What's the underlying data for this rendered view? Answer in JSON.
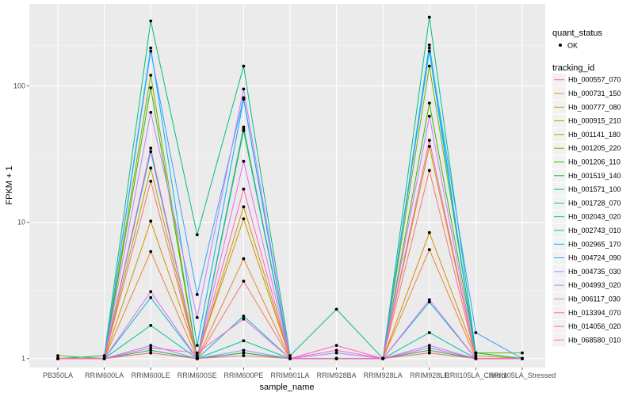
{
  "chart_data": {
    "type": "line",
    "xlabel": "sample_name",
    "ylabel": "FPKM + 1",
    "y_scale": "log10",
    "ylim": [
      0.86,
      400
    ],
    "yticks": [
      1,
      10,
      100
    ],
    "ytick_labels": [
      "1",
      "10",
      "100"
    ],
    "grid": true,
    "legend_position": "right",
    "categories": [
      "PB350LA",
      "RRIM600LA",
      "RRIM600LE",
      "RRIM600SE",
      "RRIM600PE",
      "RRIM901LA",
      "RRIM928BA",
      "RRIM928LA",
      "RRIM928LE",
      "RRII105LA_Control",
      "RRII105LA_Stressed"
    ],
    "point_legend": {
      "title": "quant_status",
      "label": "OK"
    },
    "line_legend_title": "tracking_id",
    "series": [
      {
        "name": "Hb_000557_070",
        "color": "#F8766D",
        "values": [
          1.0,
          1.0,
          20,
          1.0,
          3.7,
          1.0,
          1.0,
          1.0,
          24,
          1.0,
          1.0
        ]
      },
      {
        "name": "Hb_000731_150",
        "color": "#EA8331",
        "values": [
          1.0,
          1.0,
          6.1,
          1.0,
          5.4,
          1.0,
          1.0,
          1.0,
          6.3,
          1.0,
          1.0
        ]
      },
      {
        "name": "Hb_000777_080",
        "color": "#D89000",
        "values": [
          1.0,
          1.0,
          10.2,
          1.05,
          10.6,
          1.0,
          1.0,
          1.0,
          8.4,
          1.05,
          1.0
        ]
      },
      {
        "name": "Hb_000915_210",
        "color": "#C09B00",
        "values": [
          1.0,
          1.0,
          25,
          1.0,
          13,
          1.0,
          1.0,
          1.0,
          36,
          1.0,
          1.0
        ]
      },
      {
        "name": "Hb_001141_180",
        "color": "#A3A500",
        "values": [
          1.0,
          1.0,
          1.1,
          1.0,
          1.1,
          1.0,
          1.0,
          1.0,
          1.1,
          1.0,
          1.0
        ]
      },
      {
        "name": "Hb_001205_220",
        "color": "#7CAE00",
        "values": [
          1.05,
          1.0,
          120,
          1.0,
          50,
          1.0,
          1.0,
          1.0,
          140,
          1.1,
          1.1
        ]
      },
      {
        "name": "Hb_001206_110",
        "color": "#39B600",
        "values": [
          1.0,
          1.0,
          97,
          1.0,
          47,
          1.0,
          1.0,
          1.0,
          75,
          1.1,
          1.0
        ]
      },
      {
        "name": "Hb_001519_140",
        "color": "#00BB4E",
        "values": [
          1.0,
          1.0,
          1.15,
          1.0,
          1.1,
          1.0,
          1.0,
          1.0,
          1.15,
          1.0,
          1.0
        ]
      },
      {
        "name": "Hb_001571_100",
        "color": "#00BF7D",
        "values": [
          1.0,
          1.05,
          300,
          8.1,
          140,
          1.05,
          2.3,
          1.0,
          320,
          1.1,
          1.0
        ]
      },
      {
        "name": "Hb_001728_070",
        "color": "#00C1A3",
        "values": [
          1.0,
          1.0,
          1.75,
          1.0,
          1.35,
          1.0,
          1.0,
          1.0,
          1.55,
          1.0,
          1.0
        ]
      },
      {
        "name": "Hb_002043_020",
        "color": "#00BFC4",
        "values": [
          1.0,
          1.0,
          2.8,
          1.0,
          2.05,
          1.0,
          1.0,
          1.0,
          2.6,
          1.0,
          1.0
        ]
      },
      {
        "name": "Hb_002743_010",
        "color": "#00BAE0",
        "values": [
          1.0,
          1.0,
          33,
          1.0,
          48,
          1.0,
          1.0,
          1.0,
          180,
          1.0,
          1.0
        ]
      },
      {
        "name": "Hb_002965_170",
        "color": "#00B0F6",
        "values": [
          1.0,
          1.0,
          190,
          1.25,
          80,
          1.0,
          1.0,
          1.0,
          200,
          1.0,
          1.0
        ]
      },
      {
        "name": "Hb_004724_090",
        "color": "#35A2FF",
        "values": [
          1.0,
          1.0,
          180,
          2.95,
          82,
          1.0,
          1.0,
          1.0,
          190,
          1.55,
          1.0
        ]
      },
      {
        "name": "Hb_004735_030",
        "color": "#9590FF",
        "values": [
          1.0,
          1.0,
          1.25,
          1.0,
          1.15,
          1.0,
          1.1,
          1.0,
          1.25,
          1.0,
          1.0
        ]
      },
      {
        "name": "Hb_004993_020",
        "color": "#C77CFF",
        "values": [
          1.0,
          1.0,
          64,
          2.0,
          95,
          1.0,
          1.0,
          1.0,
          60,
          1.0,
          1.0
        ]
      },
      {
        "name": "Hb_006117_030",
        "color": "#E76BF3",
        "values": [
          1.0,
          1.0,
          3.1,
          1.0,
          28,
          1.0,
          1.0,
          1.0,
          2.7,
          1.0,
          1.0
        ]
      },
      {
        "name": "Hb_013394_070",
        "color": "#FA62DB",
        "values": [
          1.0,
          1.0,
          1.2,
          1.1,
          1.95,
          1.0,
          1.15,
          1.0,
          1.2,
          1.0,
          1.0
        ]
      },
      {
        "name": "Hb_014056_020",
        "color": "#FF62BC",
        "values": [
          1.0,
          1.0,
          35,
          1.0,
          17.5,
          1.0,
          1.25,
          1.0,
          40,
          1.0,
          1.0
        ]
      },
      {
        "name": "Hb_068580_010",
        "color": "#FF6C91",
        "values": [
          1.0,
          1.0,
          1.1,
          1.0,
          1.05,
          1.0,
          1.0,
          1.0,
          1.1,
          1.0,
          1.0
        ]
      }
    ]
  }
}
